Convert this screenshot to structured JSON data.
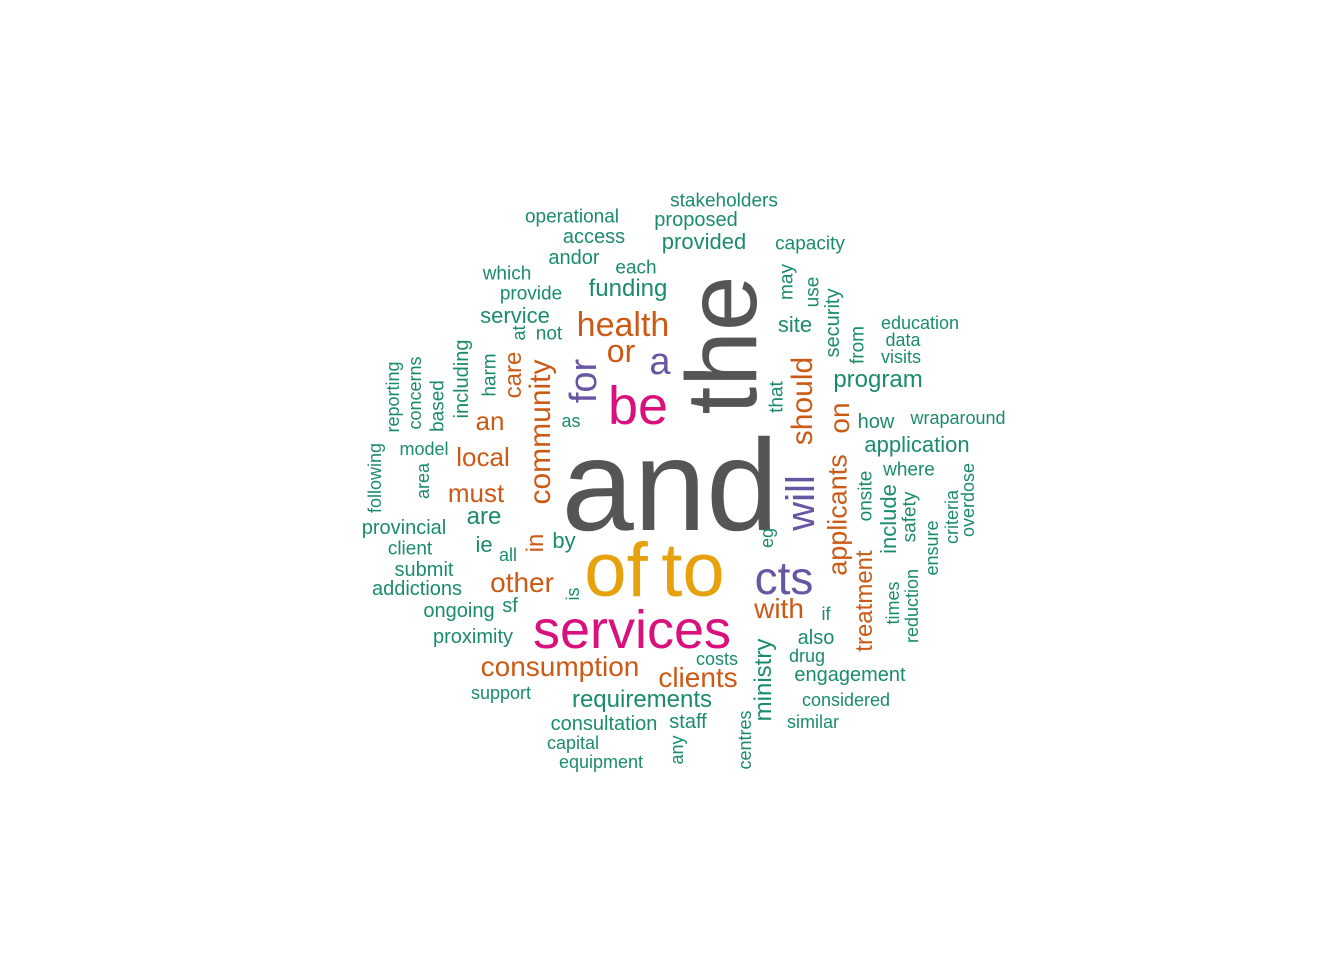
{
  "palette": {
    "grey": "#555555",
    "orange": "#E6A10C",
    "pink": "#D8117C",
    "purple": "#6956A3",
    "rust": "#CC5A17",
    "teal": "#1B8C6A"
  },
  "words": [
    {
      "text": "and",
      "color": "grey",
      "size": 130,
      "vertical": false
    },
    {
      "text": "the",
      "color": "grey",
      "size": 100,
      "vertical": true
    },
    {
      "text": "of",
      "color": "orange",
      "size": 76,
      "vertical": false
    },
    {
      "text": "to",
      "color": "orange",
      "size": 76,
      "vertical": false
    },
    {
      "text": "services",
      "color": "pink",
      "size": 54,
      "vertical": false
    },
    {
      "text": "be",
      "color": "pink",
      "size": 54,
      "vertical": false
    },
    {
      "text": "cts",
      "color": "purple",
      "size": 46,
      "vertical": false
    },
    {
      "text": "will",
      "color": "purple",
      "size": 40,
      "vertical": true
    },
    {
      "text": "for",
      "color": "purple",
      "size": 38,
      "vertical": true
    },
    {
      "text": "a",
      "color": "purple",
      "size": 38,
      "vertical": false
    },
    {
      "text": "community",
      "color": "rust",
      "size": 30,
      "vertical": true
    },
    {
      "text": "health",
      "color": "rust",
      "size": 34,
      "vertical": false
    },
    {
      "text": "or",
      "color": "rust",
      "size": 32,
      "vertical": false
    },
    {
      "text": "should",
      "color": "rust",
      "size": 30,
      "vertical": true
    },
    {
      "text": "applicants",
      "color": "rust",
      "size": 27,
      "vertical": true
    },
    {
      "text": "on",
      "color": "rust",
      "size": 28,
      "vertical": true
    },
    {
      "text": "treatment",
      "color": "rust",
      "size": 24,
      "vertical": true
    },
    {
      "text": "consumption",
      "color": "rust",
      "size": 28,
      "vertical": false
    },
    {
      "text": "other",
      "color": "rust",
      "size": 28,
      "vertical": false
    },
    {
      "text": "with",
      "color": "rust",
      "size": 28,
      "vertical": false
    },
    {
      "text": "clients",
      "color": "rust",
      "size": 28,
      "vertical": false
    },
    {
      "text": "local",
      "color": "rust",
      "size": 26,
      "vertical": false
    },
    {
      "text": "must",
      "color": "rust",
      "size": 26,
      "vertical": false
    },
    {
      "text": "an",
      "color": "rust",
      "size": 26,
      "vertical": false
    },
    {
      "text": "care",
      "color": "rust",
      "size": 24,
      "vertical": true
    },
    {
      "text": "in",
      "color": "rust",
      "size": 24,
      "vertical": true
    },
    {
      "text": "program",
      "color": "teal",
      "size": 24,
      "vertical": false
    },
    {
      "text": "ministry",
      "color": "teal",
      "size": 24,
      "vertical": true
    },
    {
      "text": "requirements",
      "color": "teal",
      "size": 24,
      "vertical": false
    },
    {
      "text": "funding",
      "color": "teal",
      "size": 24,
      "vertical": false
    },
    {
      "text": "application",
      "color": "teal",
      "size": 22,
      "vertical": false
    },
    {
      "text": "include",
      "color": "teal",
      "size": 22,
      "vertical": true
    },
    {
      "text": "are",
      "color": "teal",
      "size": 24,
      "vertical": false
    },
    {
      "text": "site",
      "color": "teal",
      "size": 22,
      "vertical": false
    },
    {
      "text": "provided",
      "color": "teal",
      "size": 22,
      "vertical": false
    },
    {
      "text": "service",
      "color": "teal",
      "size": 22,
      "vertical": false
    },
    {
      "text": "by",
      "color": "teal",
      "size": 22,
      "vertical": false
    },
    {
      "text": "ie",
      "color": "teal",
      "size": 22,
      "vertical": false
    },
    {
      "text": "also",
      "color": "teal",
      "size": 20,
      "vertical": false
    },
    {
      "text": "how",
      "color": "teal",
      "size": 20,
      "vertical": false
    },
    {
      "text": "security",
      "color": "teal",
      "size": 20,
      "vertical": true
    },
    {
      "text": "including",
      "color": "teal",
      "size": 20,
      "vertical": true
    },
    {
      "text": "engagement",
      "color": "teal",
      "size": 20,
      "vertical": false
    },
    {
      "text": "consultation",
      "color": "teal",
      "size": 20,
      "vertical": false
    },
    {
      "text": "access",
      "color": "teal",
      "size": 20,
      "vertical": false
    },
    {
      "text": "andor",
      "color": "teal",
      "size": 20,
      "vertical": false
    },
    {
      "text": "provincial",
      "color": "teal",
      "size": 20,
      "vertical": false
    },
    {
      "text": "submit",
      "color": "teal",
      "size": 20,
      "vertical": false
    },
    {
      "text": "addictions",
      "color": "teal",
      "size": 20,
      "vertical": false
    },
    {
      "text": "ongoing",
      "color": "teal",
      "size": 20,
      "vertical": false
    },
    {
      "text": "proximity",
      "color": "teal",
      "size": 20,
      "vertical": false
    },
    {
      "text": "proposed",
      "color": "teal",
      "size": 20,
      "vertical": false
    },
    {
      "text": "stakeholders",
      "color": "teal",
      "size": 19,
      "vertical": false
    },
    {
      "text": "operational",
      "color": "teal",
      "size": 19,
      "vertical": false
    },
    {
      "text": "capacity",
      "color": "teal",
      "size": 19,
      "vertical": false
    },
    {
      "text": "which",
      "color": "teal",
      "size": 19,
      "vertical": false
    },
    {
      "text": "each",
      "color": "teal",
      "size": 19,
      "vertical": false
    },
    {
      "text": "provide",
      "color": "teal",
      "size": 19,
      "vertical": false
    },
    {
      "text": "staff",
      "color": "teal",
      "size": 20,
      "vertical": false
    },
    {
      "text": "where",
      "color": "teal",
      "size": 19,
      "vertical": false
    },
    {
      "text": "onsite",
      "color": "teal",
      "size": 19,
      "vertical": true
    },
    {
      "text": "safety",
      "color": "teal",
      "size": 19,
      "vertical": true
    },
    {
      "text": "sf",
      "color": "teal",
      "size": 20,
      "vertical": false
    },
    {
      "text": "may",
      "color": "teal",
      "size": 19,
      "vertical": true
    },
    {
      "text": "use",
      "color": "teal",
      "size": 19,
      "vertical": true
    },
    {
      "text": "from",
      "color": "teal",
      "size": 19,
      "vertical": true
    },
    {
      "text": "that",
      "color": "teal",
      "size": 19,
      "vertical": true
    },
    {
      "text": "harm",
      "color": "teal",
      "size": 19,
      "vertical": true
    },
    {
      "text": "based",
      "color": "teal",
      "size": 19,
      "vertical": true
    },
    {
      "text": "client",
      "color": "teal",
      "size": 19,
      "vertical": false
    },
    {
      "text": "not",
      "color": "teal",
      "size": 19,
      "vertical": false
    },
    {
      "text": "education",
      "color": "teal",
      "size": 18,
      "vertical": false
    },
    {
      "text": "data",
      "color": "teal",
      "size": 18,
      "vertical": false
    },
    {
      "text": "visits",
      "color": "teal",
      "size": 18,
      "vertical": false
    },
    {
      "text": "wraparound",
      "color": "teal",
      "size": 18,
      "vertical": false
    },
    {
      "text": "support",
      "color": "teal",
      "size": 18,
      "vertical": false
    },
    {
      "text": "capital",
      "color": "teal",
      "size": 18,
      "vertical": false
    },
    {
      "text": "equipment",
      "color": "teal",
      "size": 18,
      "vertical": false
    },
    {
      "text": "costs",
      "color": "teal",
      "size": 18,
      "vertical": false
    },
    {
      "text": "drug",
      "color": "teal",
      "size": 18,
      "vertical": false
    },
    {
      "text": "considered",
      "color": "teal",
      "size": 18,
      "vertical": false
    },
    {
      "text": "similar",
      "color": "teal",
      "size": 18,
      "vertical": false
    },
    {
      "text": "if",
      "color": "teal",
      "size": 18,
      "vertical": false
    },
    {
      "text": "reduction",
      "color": "teal",
      "size": 18,
      "vertical": true
    },
    {
      "text": "times",
      "color": "teal",
      "size": 18,
      "vertical": true
    },
    {
      "text": "ensure",
      "color": "teal",
      "size": 18,
      "vertical": true
    },
    {
      "text": "criteria",
      "color": "teal",
      "size": 18,
      "vertical": true
    },
    {
      "text": "overdose",
      "color": "teal",
      "size": 18,
      "vertical": true
    },
    {
      "text": "model",
      "color": "teal",
      "size": 18,
      "vertical": false
    },
    {
      "text": "area",
      "color": "teal",
      "size": 18,
      "vertical": true
    },
    {
      "text": "reporting",
      "color": "teal",
      "size": 18,
      "vertical": true
    },
    {
      "text": "concerns",
      "color": "teal",
      "size": 18,
      "vertical": true
    },
    {
      "text": "following",
      "color": "teal",
      "size": 18,
      "vertical": true
    },
    {
      "text": "at",
      "color": "teal",
      "size": 18,
      "vertical": true
    },
    {
      "text": "as",
      "color": "teal",
      "size": 18,
      "vertical": false
    },
    {
      "text": "all",
      "color": "teal",
      "size": 18,
      "vertical": false
    },
    {
      "text": "is",
      "color": "teal",
      "size": 18,
      "vertical": true
    },
    {
      "text": "eg",
      "color": "teal",
      "size": 18,
      "vertical": true
    },
    {
      "text": "any",
      "color": "teal",
      "size": 18,
      "vertical": true
    },
    {
      "text": "centres",
      "color": "teal",
      "size": 18,
      "vertical": true
    }
  ]
}
